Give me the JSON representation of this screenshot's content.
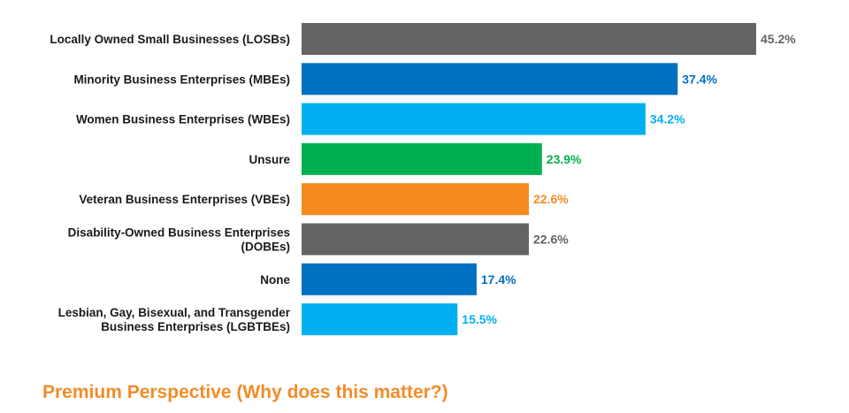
{
  "chart_data": {
    "type": "bar",
    "orientation": "horizontal",
    "categories": [
      [
        "Locally Owned Small Businesses (LOSBs)"
      ],
      [
        "Minority Business Enterprises (MBEs)"
      ],
      [
        "Women Business Enterprises (WBEs)"
      ],
      [
        "Unsure"
      ],
      [
        "Veteran Business Enterprises (VBEs)"
      ],
      [
        "Disability-Owned Business Enterprises",
        "(DOBEs)"
      ],
      [
        "None"
      ],
      [
        "Lesbian, Gay, Bisexual, and Transgender",
        "Business Enterprises (LGBTBEs)"
      ]
    ],
    "values": [
      45.2,
      37.4,
      34.2,
      23.9,
      22.6,
      22.6,
      17.4,
      15.5
    ],
    "value_labels": [
      "45.2%",
      "37.4%",
      "34.2%",
      "23.9%",
      "22.6%",
      "22.6%",
      "17.4%",
      "15.5%"
    ],
    "colors": [
      "#636466",
      "#0070c0",
      "#00b0f0",
      "#00b050",
      "#f58a20",
      "#636466",
      "#0070c0",
      "#00b0f0"
    ],
    "label_colors": [
      "#636466",
      "#0070c0",
      "#00b0f0",
      "#00b050",
      "#f58a20",
      "#636466",
      "#0070c0",
      "#00b0f0"
    ],
    "xlim": [
      0,
      45.2
    ],
    "grid": false,
    "legend": "none"
  },
  "footer": {
    "title": "Premium Perspective (Why does this matter?)"
  }
}
